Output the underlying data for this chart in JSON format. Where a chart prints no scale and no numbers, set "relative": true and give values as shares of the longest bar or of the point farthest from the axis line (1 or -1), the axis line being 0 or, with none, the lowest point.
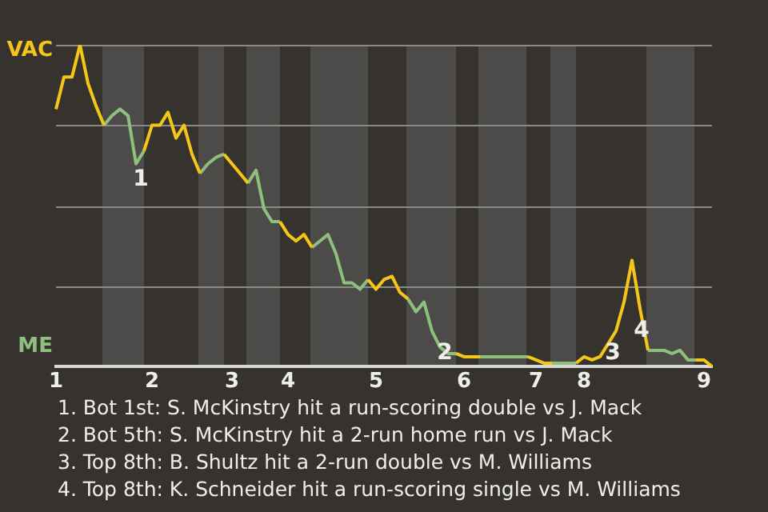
{
  "chart_data": {
    "type": "line",
    "relative": true,
    "categories": [
      "1",
      null,
      null,
      null,
      null,
      null,
      null,
      null,
      null,
      null,
      null,
      null,
      "2",
      null,
      null,
      null,
      null,
      null,
      null,
      null,
      null,
      null,
      "3",
      null,
      null,
      null,
      null,
      null,
      null,
      "4",
      null,
      null,
      null,
      null,
      null,
      null,
      null,
      null,
      null,
      null,
      "5",
      null,
      null,
      null,
      null,
      null,
      null,
      null,
      null,
      null,
      null,
      "6",
      null,
      null,
      null,
      null,
      null,
      null,
      null,
      null,
      "7",
      null,
      null,
      null,
      null,
      null,
      "8",
      null,
      null,
      null,
      null,
      null,
      null,
      null,
      null,
      null,
      null,
      null,
      null,
      null,
      null,
      "9",
      null
    ],
    "marker": "none",
    "series": [
      {
        "color": "#f5c518",
        "values": [
          0.8,
          0.9,
          0.9,
          1,
          0.88,
          0.81,
          0.75,
          null,
          null,
          null,
          null,
          0.67,
          0.75,
          0.75,
          0.79,
          0.71,
          0.75,
          0.66,
          0.6,
          null,
          null,
          0.66,
          0.63,
          0.6,
          0.57,
          null,
          null,
          null,
          0.45,
          0.41,
          0.39,
          0.41,
          0.37,
          null,
          null,
          null,
          null,
          null,
          null,
          0.27,
          0.24,
          0.27,
          0.28,
          0.23,
          0.21,
          null,
          null,
          null,
          null,
          null,
          0.04,
          0.03,
          0.03,
          0.03,
          null,
          null,
          null,
          null,
          null,
          0.03,
          0.02,
          0.01,
          0.01,
          null,
          null,
          0.01,
          0.03,
          0.02,
          0.03,
          0.07,
          0.11,
          0.2,
          0.33,
          0.18,
          0.05,
          null,
          null,
          null,
          null,
          null,
          0.02,
          0.02,
          0
        ]
      },
      {
        "color": "#8fbf7f",
        "values": [
          null,
          null,
          null,
          null,
          null,
          null,
          0.75,
          0.78,
          0.8,
          0.78,
          0.63,
          0.67,
          null,
          null,
          null,
          null,
          null,
          null,
          0.6,
          0.63,
          0.65,
          0.66,
          null,
          null,
          0.57,
          0.61,
          0.49,
          0.45,
          0.45,
          null,
          null,
          null,
          0.37,
          0.39,
          0.41,
          0.35,
          0.26,
          0.26,
          0.24,
          0.27,
          null,
          null,
          null,
          null,
          0.21,
          0.17,
          0.2,
          0.11,
          0.06,
          0.04,
          0.04,
          null,
          null,
          0.03,
          0.03,
          0.03,
          0.03,
          0.03,
          0.03,
          0.03,
          null,
          null,
          0.01,
          0.01,
          0.01,
          0.01,
          null,
          null,
          null,
          null,
          null,
          null,
          null,
          null,
          0.05,
          0.05,
          0.05,
          0.04,
          0.05,
          0.02,
          0.02,
          null,
          null
        ]
      }
    ],
    "annotations": [
      "VAC",
      "ME",
      "1",
      "2",
      "3",
      "4",
      "1. Bot 1st: S. McKinstry hit a run-scoring double vs J. Mack",
      "2. Bot 5th: S. McKinstry hit a 2-run home run vs J. Mack",
      "3. Top 8th: B. Shultz hit a 2-run double vs M. Williams",
      "4. Top 8th: K. Schneider hit a run-scoring single vs M. Williams"
    ]
  }
}
